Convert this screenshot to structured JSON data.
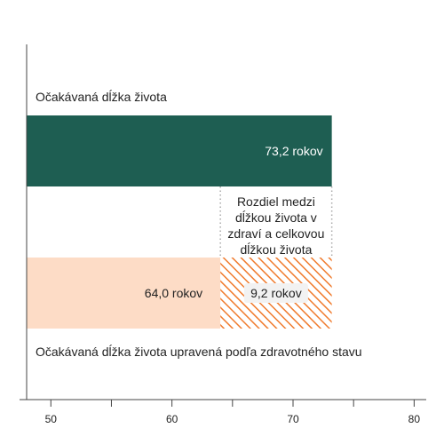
{
  "chart_data": {
    "type": "bar",
    "orientation": "horizontal",
    "x_axis": {
      "min": 48,
      "max": 81,
      "ticks": [
        50,
        60,
        70,
        80
      ],
      "tick_labels": [
        "50",
        "60",
        "70",
        "80"
      ]
    },
    "bars": [
      {
        "label": "Očakávaná dĺžka života",
        "value": 73.2,
        "value_label": "73,2 rokov",
        "color": "#1e5e52"
      },
      {
        "label": "Očakávaná dĺžka života upravená podľa zdravotného stavu",
        "value": 64.0,
        "value_label": "64,0 rokov",
        "color": "#fddcc6"
      }
    ],
    "gap": {
      "from": 64.0,
      "to": 73.2,
      "value": 9.2,
      "value_label": "9,2 rokov",
      "pattern_color": "#f07a2c",
      "annotation": [
        "Rozdiel medzi",
        "dĺžkou života v",
        "zdraví a celkovou",
        "dĺžkou života"
      ]
    },
    "colors": {
      "axis": "#444444",
      "dotted": "#aaaaaa",
      "dark_bar_text": "#ffffff",
      "text": "#222222",
      "gap_label_bg": "#f2f2f2"
    }
  }
}
